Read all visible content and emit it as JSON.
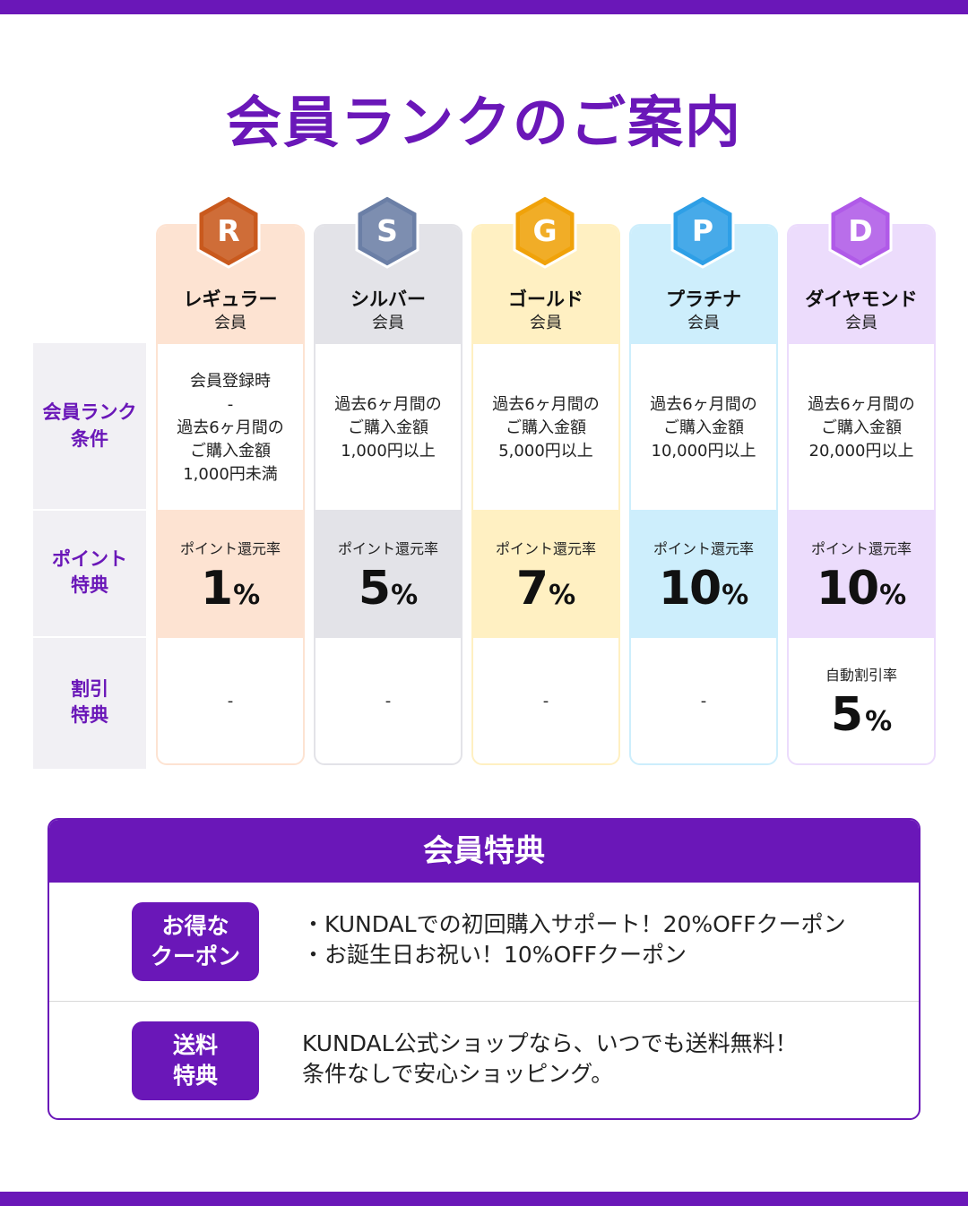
{
  "page": {
    "title": "会員ランクのご案内"
  },
  "row_labels": [
    {
      "line1": "会員ランク",
      "line2": "条件"
    },
    {
      "line1": "ポイント",
      "line2": "特典"
    },
    {
      "line1": "割引",
      "line2": "特典"
    }
  ],
  "tiers": [
    {
      "badge": "R",
      "name": "レギュラー",
      "sub": "会員",
      "tint": "#fde3d2",
      "badge_color": "#c9591d",
      "condition": [
        "会員登録時",
        "-",
        "過去6ヶ月間の",
        "ご購入金額",
        "1,000円未満"
      ],
      "point_label": "ポイント還元率",
      "point_value": "1",
      "point_unit": "%",
      "discount": "-"
    },
    {
      "badge": "S",
      "name": "シルバー",
      "sub": "会員",
      "tint": "#e3e3e8",
      "badge_color": "#6b7fa6",
      "condition": [
        "過去6ヶ月間の",
        "ご購入金額",
        "1,000円以上"
      ],
      "point_label": "ポイント還元率",
      "point_value": "5",
      "point_unit": "%",
      "discount": "-"
    },
    {
      "badge": "G",
      "name": "ゴールド",
      "sub": "会員",
      "tint": "#fff0c2",
      "badge_color": "#f0a20a",
      "condition": [
        "過去6ヶ月間の",
        "ご購入金額",
        "5,000円以上"
      ],
      "point_label": "ポイント還元率",
      "point_value": "7",
      "point_unit": "%",
      "discount": "-"
    },
    {
      "badge": "P",
      "name": "プラチナ",
      "sub": "会員",
      "tint": "#cdeefc",
      "badge_color": "#2e9fe6",
      "condition": [
        "過去6ヶ月間の",
        "ご購入金額",
        "10,000円以上"
      ],
      "point_label": "ポイント還元率",
      "point_value": "10",
      "point_unit": "%",
      "discount": "-"
    },
    {
      "badge": "D",
      "name": "ダイヤモンド",
      "sub": "会員",
      "tint": "#ecdcfc",
      "badge_color": "#b05ae8",
      "condition": [
        "過去6ヶ月間の",
        "ご購入金額",
        "20,000円以上"
      ],
      "point_label": "ポイント還元率",
      "point_value": "10",
      "point_unit": "%",
      "discount_label": "自動割引率",
      "discount_value": "5",
      "discount_unit": "%"
    }
  ],
  "benefits": {
    "title": "会員特典",
    "items": [
      {
        "tag1": "お得な",
        "tag2": "クーポン",
        "text1": "・KUNDALでの初回購入サポート！20%OFFクーポン",
        "text2": "・お誕生日お祝い！10%OFFクーポン"
      },
      {
        "tag1": "送料",
        "tag2": "特典",
        "text1": "KUNDAL公式ショップなら、いつでも送料無料！",
        "text2": "条件なしで安心ショッピング。"
      }
    ]
  },
  "colors": {
    "brand": "#6a17b8"
  }
}
